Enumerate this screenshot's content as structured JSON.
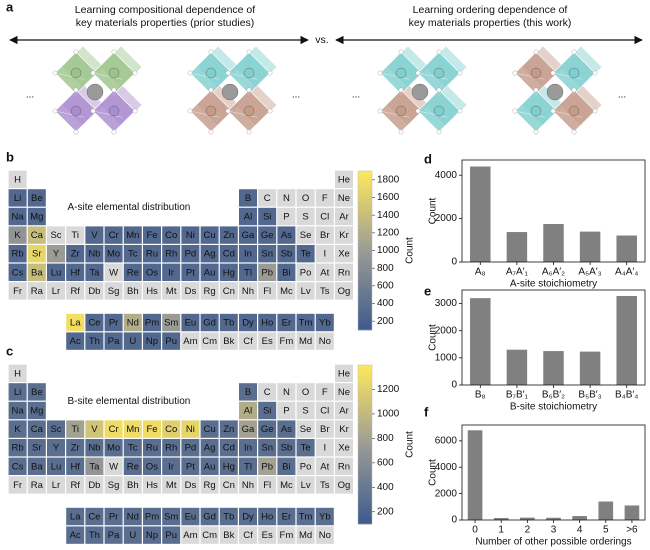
{
  "panel_labels": [
    "a",
    "b",
    "c",
    "d",
    "e",
    "f"
  ],
  "header": {
    "left_lines": [
      "Learning compositional dependence of",
      "key materials properties (prior studies)"
    ],
    "vs": "vs.",
    "right_lines": [
      "Learning ordering dependence of",
      "key materials properties (this work)"
    ],
    "ellipsis": "..."
  },
  "chart_data": [
    {
      "type": "heatmap",
      "title": "A-site elemental distribution",
      "elements": [
        "H",
        "He",
        "Li",
        "Be",
        "B",
        "C",
        "N",
        "O",
        "F",
        "Ne",
        "Na",
        "Mg",
        "Al",
        "Si",
        "P",
        "S",
        "Cl",
        "Ar",
        "K",
        "Ca",
        "Sc",
        "Ti",
        "V",
        "Cr",
        "Mn",
        "Fe",
        "Co",
        "Ni",
        "Cu",
        "Zn",
        "Ga",
        "Ge",
        "As",
        "Se",
        "Br",
        "Kr",
        "Rb",
        "Sr",
        "Y",
        "Zr",
        "Nb",
        "Mo",
        "Tc",
        "Ru",
        "Rh",
        "Pd",
        "Ag",
        "Cd",
        "In",
        "Sn",
        "Sb",
        "Te",
        "I",
        "Xe",
        "Cs",
        "Ba",
        "Lu",
        "Hf",
        "Ta",
        "W",
        "Re",
        "Os",
        "Ir",
        "Pt",
        "Au",
        "Hg",
        "Tl",
        "Pb",
        "Bi",
        "Po",
        "At",
        "Rn",
        "Fr",
        "Ra",
        "Lr",
        "Rf",
        "Db",
        "Sg",
        "Bh",
        "Hs",
        "Mt",
        "Ds",
        "Rg",
        "Cn",
        "Nh",
        "Fl",
        "Mc",
        "Lv",
        "Ts",
        "Og",
        "La",
        "Ce",
        "Pr",
        "Nd",
        "Pm",
        "Sm",
        "Eu",
        "Gd",
        "Tb",
        "Dy",
        "Ho",
        "Er",
        "Tm",
        "Yb",
        "Ac",
        "Th",
        "Pa",
        "U",
        "Np",
        "Pu",
        "Am",
        "Cm",
        "Bk",
        "Cf",
        "Es",
        "Fm",
        "Md",
        "No"
      ],
      "values": [
        null,
        null,
        300,
        300,
        300,
        null,
        null,
        null,
        null,
        null,
        300,
        300,
        300,
        300,
        null,
        null,
        null,
        null,
        900,
        1400,
        null,
        null,
        300,
        300,
        300,
        300,
        300,
        300,
        300,
        300,
        300,
        300,
        300,
        null,
        null,
        null,
        300,
        1700,
        1000,
        300,
        300,
        300,
        300,
        300,
        300,
        300,
        300,
        300,
        300,
        300,
        300,
        300,
        null,
        null,
        300,
        1400,
        300,
        300,
        300,
        null,
        300,
        300,
        300,
        300,
        300,
        300,
        300,
        1000,
        300,
        null,
        null,
        null,
        null,
        null,
        null,
        null,
        null,
        null,
        null,
        null,
        null,
        null,
        null,
        null,
        null,
        null,
        null,
        null,
        null,
        null,
        1800,
        300,
        300,
        1200,
        300,
        1000,
        300,
        300,
        300,
        300,
        300,
        300,
        300,
        300,
        300,
        300,
        300,
        300,
        300,
        300,
        null,
        null,
        null,
        null,
        null,
        null,
        null,
        null
      ],
      "colormap": [
        "#3d5a8c",
        "#9b9b96",
        "#fde85c"
      ],
      "empty_color": "#d9d9d9",
      "colorbar": {
        "label": "Count",
        "lim": [
          100,
          1900
        ],
        "ticks": [
          200,
          400,
          600,
          800,
          1000,
          1200,
          1400,
          1600,
          1800
        ]
      }
    },
    {
      "type": "heatmap",
      "title": "B-site elemental distribution",
      "elements": [
        "H",
        "He",
        "Li",
        "Be",
        "B",
        "C",
        "N",
        "O",
        "F",
        "Ne",
        "Na",
        "Mg",
        "Al",
        "Si",
        "P",
        "S",
        "Cl",
        "Ar",
        "K",
        "Ca",
        "Sc",
        "Ti",
        "V",
        "Cr",
        "Mn",
        "Fe",
        "Co",
        "Ni",
        "Cu",
        "Zn",
        "Ga",
        "Ge",
        "As",
        "Se",
        "Br",
        "Kr",
        "Rb",
        "Sr",
        "Y",
        "Zr",
        "Nb",
        "Mo",
        "Tc",
        "Ru",
        "Rh",
        "Pd",
        "Ag",
        "Cd",
        "In",
        "Sn",
        "Sb",
        "Te",
        "I",
        "Xe",
        "Cs",
        "Ba",
        "Lu",
        "Hf",
        "Ta",
        "W",
        "Re",
        "Os",
        "Ir",
        "Pt",
        "Au",
        "Hg",
        "Tl",
        "Pb",
        "Bi",
        "Po",
        "At",
        "Rn",
        "Fr",
        "Ra",
        "Lr",
        "Rf",
        "Db",
        "Sg",
        "Bh",
        "Hs",
        "Mt",
        "Ds",
        "Rg",
        "Cn",
        "Nh",
        "Fl",
        "Mc",
        "Lv",
        "Ts",
        "Og",
        "La",
        "Ce",
        "Pr",
        "Nd",
        "Pm",
        "Sm",
        "Eu",
        "Gd",
        "Tb",
        "Dy",
        "Ho",
        "Er",
        "Tm",
        "Yb",
        "Ac",
        "Th",
        "Pa",
        "U",
        "Np",
        "Pu",
        "Am",
        "Cm",
        "Bk",
        "Cf",
        "Es",
        "Fm",
        "Md",
        "No"
      ],
      "values": [
        null,
        null,
        300,
        300,
        300,
        null,
        null,
        null,
        null,
        null,
        300,
        300,
        900,
        300,
        null,
        null,
        null,
        null,
        300,
        300,
        300,
        800,
        1100,
        1300,
        1300,
        1300,
        1200,
        1250,
        300,
        300,
        800,
        300,
        300,
        null,
        null,
        null,
        300,
        300,
        300,
        300,
        300,
        300,
        300,
        300,
        300,
        300,
        300,
        300,
        300,
        300,
        300,
        300,
        null,
        null,
        300,
        300,
        300,
        300,
        700,
        null,
        300,
        300,
        300,
        300,
        300,
        300,
        300,
        800,
        300,
        null,
        null,
        null,
        null,
        null,
        null,
        null,
        null,
        null,
        null,
        null,
        null,
        null,
        null,
        null,
        null,
        null,
        null,
        null,
        null,
        null,
        300,
        300,
        300,
        300,
        300,
        300,
        300,
        300,
        300,
        300,
        300,
        300,
        300,
        300,
        300,
        300,
        300,
        300,
        300,
        300,
        null,
        null,
        null,
        null,
        null,
        null,
        null,
        null
      ],
      "colormap": [
        "#3d5a8c",
        "#9b9b96",
        "#fde85c"
      ],
      "empty_color": "#d9d9d9",
      "colorbar": {
        "label": "Count",
        "lim": [
          100,
          1400
        ],
        "ticks": [
          200,
          400,
          600,
          800,
          1000,
          1200
        ]
      }
    },
    {
      "type": "bar",
      "categories": [
        "A₈",
        "A₇A′₁",
        "A₆A′₂",
        "A₅A′₃",
        "A₄A′₄"
      ],
      "values": [
        4400,
        1380,
        1750,
        1400,
        1220
      ],
      "color": "#808080",
      "xlabel": "A-site stoichiometry",
      "ylabel": "Count",
      "ylim": [
        0,
        4700
      ],
      "yticks": [
        0,
        2000,
        4000
      ]
    },
    {
      "type": "bar",
      "categories": [
        "B₈",
        "B₇B′₁",
        "B₆B′₂",
        "B₅B′₃",
        "B₄B′₄"
      ],
      "values": [
        3200,
        1300,
        1250,
        1230,
        3280
      ],
      "color": "#808080",
      "xlabel": "B-site stoichiometry",
      "ylabel": "Count",
      "ylim": [
        0,
        3500
      ],
      "yticks": [
        0,
        1000,
        2000,
        3000
      ]
    },
    {
      "type": "bar",
      "categories": [
        "0",
        "1",
        "2",
        "3",
        "4",
        "5",
        ">6"
      ],
      "values": [
        6800,
        150,
        180,
        170,
        300,
        1400,
        1100
      ],
      "color": "#808080",
      "xlabel": "Number of other possible orderings",
      "ylabel": "Count",
      "ylim": [
        0,
        7200
      ],
      "yticks": [
        0,
        2000,
        4000,
        6000
      ]
    }
  ]
}
